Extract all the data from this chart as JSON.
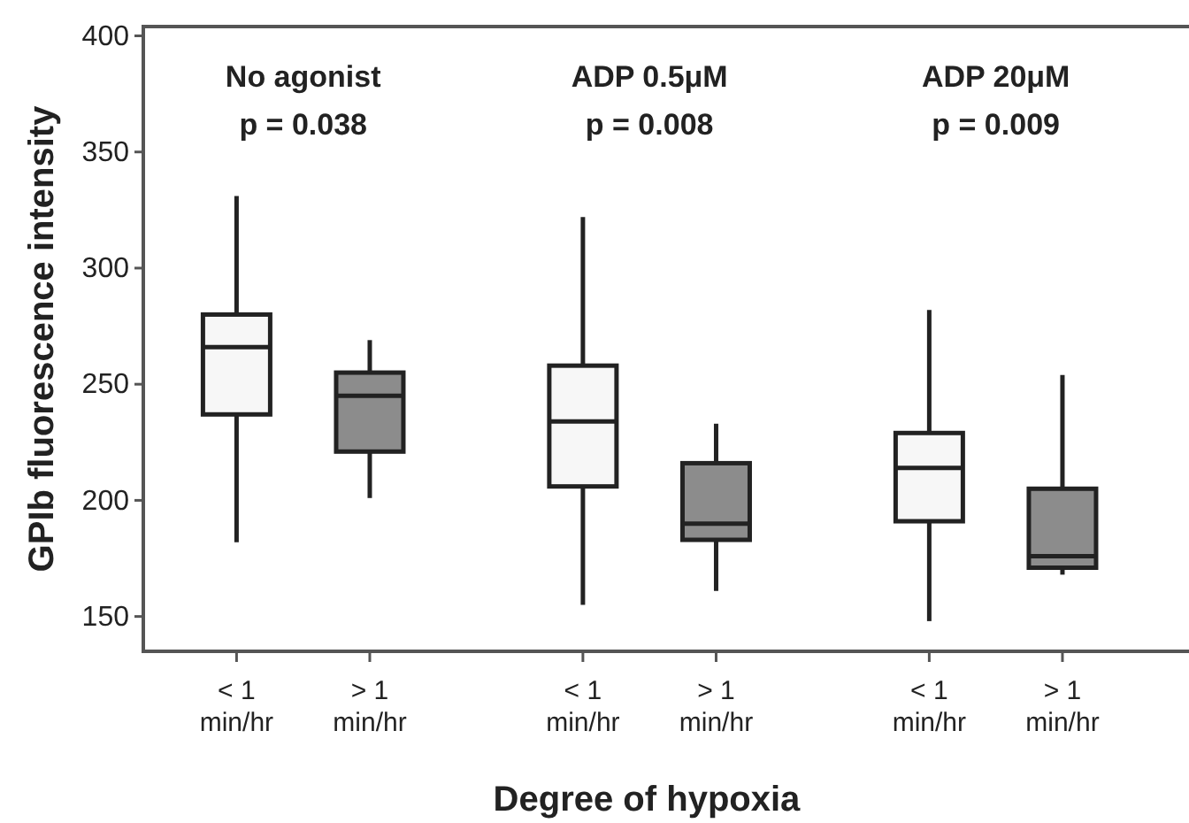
{
  "chart_data": {
    "type": "box",
    "xlabel": "Degree of hypoxia",
    "ylabel": "GPIb fluorescence intensity",
    "categories": [
      "< 1 min/hr",
      "> 1 min/hr",
      "< 1 min/hr",
      "> 1 min/hr",
      "< 1 min/hr",
      "> 1 min/hr"
    ],
    "boxes": [
      {
        "low": 182,
        "q1": 237,
        "median": 266,
        "q3": 280,
        "high": 331
      },
      {
        "low": 201,
        "q1": 221,
        "median": 245,
        "q3": 255,
        "high": 269
      },
      {
        "low": 155,
        "q1": 206,
        "median": 234,
        "q3": 258,
        "high": 322
      },
      {
        "low": 161,
        "q1": 183,
        "median": 190,
        "q3": 216,
        "high": 233
      },
      {
        "low": 148,
        "q1": 191,
        "median": 214,
        "q3": 229,
        "high": 282
      },
      {
        "low": 168,
        "q1": 171,
        "median": 176,
        "q3": 205,
        "high": 254
      }
    ],
    "colors": [
      "#f7f7f7",
      "#8c8c8c",
      "#f7f7f7",
      "#8c8c8c",
      "#f7f7f7",
      "#8c8c8c"
    ],
    "annotations": [
      "No agonist",
      "p = 0.038",
      "ADP 0.5μM",
      "p = 0.008",
      "ADP 20μM",
      "p = 0.009"
    ],
    "ylim": [
      135,
      404
    ],
    "yticks": [
      150,
      200,
      250,
      300,
      350,
      400
    ],
    "grid": false
  }
}
